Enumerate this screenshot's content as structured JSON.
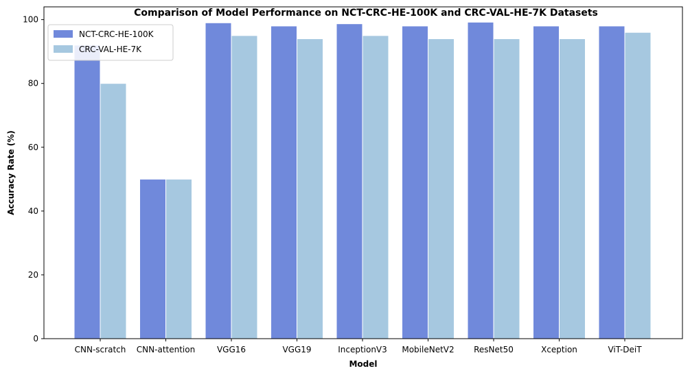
{
  "chart_data": {
    "type": "bar",
    "title": "Comparison of Model Performance on NCT-CRC-HE-100K and CRC-VAL-HE-7K Datasets",
    "xlabel": "Model",
    "ylabel": "Accuracy Rate (%)",
    "ylim": [
      0,
      104
    ],
    "yticks": [
      0,
      20,
      40,
      60,
      80,
      100
    ],
    "grid": false,
    "legend_position": "top-left",
    "categories": [
      "CNN-scratch",
      "CNN-attention",
      "VGG16",
      "VGG19",
      "InceptionV3",
      "MobileNetV2",
      "ResNet50",
      "Xception",
      "ViT-DeiT"
    ],
    "series": [
      {
        "name": "NCT-CRC-HE-100K",
        "color": "#7089db",
        "values": [
          92,
          50,
          99,
          98,
          98.7,
          98,
          99.2,
          98,
          98
        ]
      },
      {
        "name": "CRC-VAL-HE-7K",
        "color": "#a6c8e0",
        "values": [
          80,
          50,
          95,
          94,
          95,
          94,
          94,
          94,
          96
        ]
      }
    ]
  }
}
